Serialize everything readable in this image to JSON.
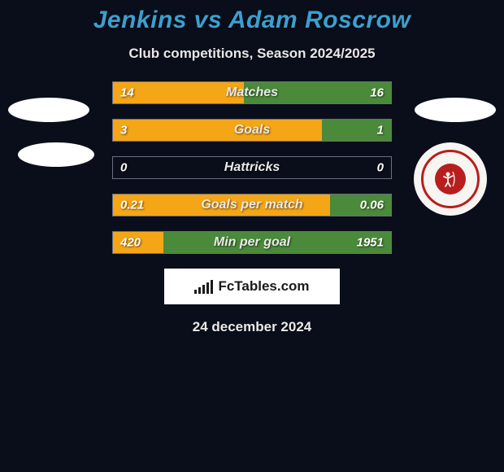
{
  "title": "Jenkins vs Adam Roscrow",
  "subtitle": "Club competitions, Season 2024/2025",
  "date": "24 december 2024",
  "attribution": "FcTables.com",
  "colors": {
    "background": "#0a0e1a",
    "title": "#3aa0d0",
    "text": "#e8e8e8",
    "bar_border": "#6a7080",
    "player1_bar": "#f4a617",
    "player2_bar": "#4a8a3a",
    "oval_fill": "#ffffff",
    "badge_bg": "#f6f5f2",
    "badge_ring": "#b81e1e",
    "badge_center": "#b81e1e",
    "fctables_bg": "#ffffff",
    "fctables_text": "#1a1a1a"
  },
  "stats": [
    {
      "label": "Matches",
      "left_value": "14",
      "right_value": "16",
      "left_pct": 47,
      "right_pct": 53
    },
    {
      "label": "Goals",
      "left_value": "3",
      "right_value": "1",
      "left_pct": 75,
      "right_pct": 25
    },
    {
      "label": "Hattricks",
      "left_value": "0",
      "right_value": "0",
      "left_pct": 0,
      "right_pct": 0
    },
    {
      "label": "Goals per match",
      "left_value": "0.21",
      "right_value": "0.06",
      "left_pct": 78,
      "right_pct": 22
    },
    {
      "label": "Min per goal",
      "left_value": "420",
      "right_value": "1951",
      "left_pct": 18,
      "right_pct": 82
    }
  ]
}
